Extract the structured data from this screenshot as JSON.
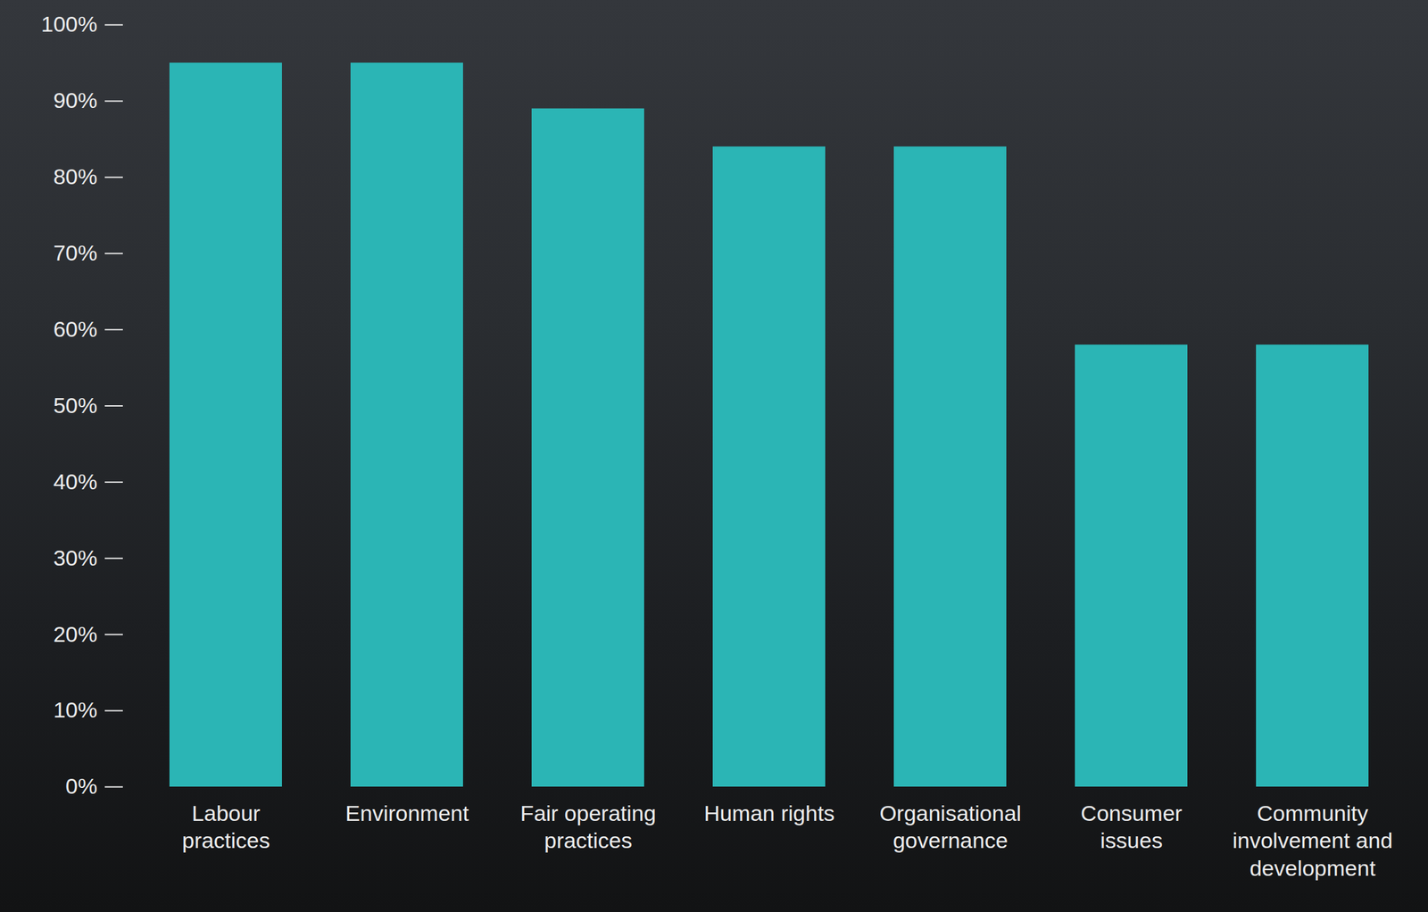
{
  "chart_data": {
    "type": "bar",
    "categories": [
      "Labour practices",
      "Environment",
      "Fair operating practices",
      "Human rights",
      "Organisational governance",
      "Consumer issues",
      "Community involvement and development"
    ],
    "values": [
      95,
      95,
      89,
      84,
      84,
      58,
      58
    ],
    "color": "#2bb5b5",
    "ylim": [
      0,
      100
    ],
    "yticks": [
      {
        "value": 0,
        "label": "0%"
      },
      {
        "value": 10,
        "label": "10%"
      },
      {
        "value": 20,
        "label": "20%"
      },
      {
        "value": 30,
        "label": "30%"
      },
      {
        "value": 40,
        "label": "40%"
      },
      {
        "value": 50,
        "label": "50%"
      },
      {
        "value": 60,
        "label": "60%"
      },
      {
        "value": 70,
        "label": "70%"
      },
      {
        "value": 80,
        "label": "80%"
      },
      {
        "value": 90,
        "label": "90%"
      },
      {
        "value": 100,
        "label": "100%"
      }
    ],
    "grid": false
  }
}
